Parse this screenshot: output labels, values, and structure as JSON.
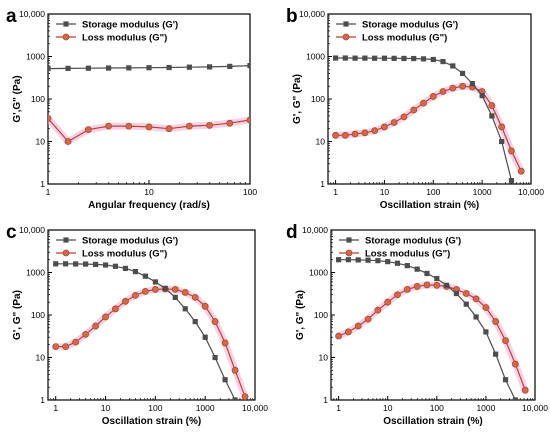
{
  "colors": {
    "storage": "#4d4d4d",
    "loss_line": "#b5452e",
    "loss_fill": "#cf6a4a",
    "loss_glow": "#f2b3d8"
  },
  "chart_data": [
    {
      "panel_label": "a",
      "type": "line",
      "xlabel": "Angular frequency (rad/s)",
      "ylabel": "G',G\" (Pa)",
      "xscale": "log",
      "yscale": "log",
      "xlim": [
        1,
        100
      ],
      "ylim": [
        1,
        10000
      ],
      "xticks": [
        "1",
        "10",
        "100"
      ],
      "yticks": [
        "1",
        "10",
        "100",
        "1000",
        "10,000"
      ],
      "legend_position": "top-left",
      "series": [
        {
          "name": "Storage modulus (G')",
          "marker": "square",
          "x": [
            1,
            1.58,
            2.51,
            3.98,
            6.31,
            10,
            15.8,
            25.1,
            39.8,
            63.1,
            100
          ],
          "y": [
            520,
            525,
            530,
            535,
            540,
            545,
            550,
            560,
            570,
            585,
            610
          ]
        },
        {
          "name": "Loss modulus (G\")",
          "marker": "circle",
          "x": [
            1,
            1.58,
            2.51,
            3.98,
            6.31,
            10,
            15.8,
            25.1,
            39.8,
            63.1,
            100
          ],
          "y": [
            35,
            10,
            19,
            23,
            23,
            22,
            20,
            23,
            24,
            27,
            32
          ]
        }
      ]
    },
    {
      "panel_label": "b",
      "type": "line",
      "xlabel": "Oscillation strain (%)",
      "ylabel": "G', G\" (Pa)",
      "xscale": "log",
      "yscale": "log",
      "xlim": [
        0.7,
        10000
      ],
      "ylim": [
        1,
        10000
      ],
      "xticks": [
        "1",
        "10",
        "100",
        "1000",
        "10,000"
      ],
      "yticks": [
        "1",
        "10",
        "100",
        "1000",
        "10,000"
      ],
      "legend_position": "top-left",
      "series": [
        {
          "name": "Storage modulus (G')",
          "marker": "square",
          "x": [
            1,
            1.58,
            2.51,
            3.98,
            6.31,
            10,
            15.8,
            25.1,
            39.8,
            63.1,
            100,
            158,
            251,
            398,
            631,
            1000,
            1580,
            2510,
            3980
          ],
          "y": [
            920,
            920,
            915,
            915,
            910,
            910,
            905,
            900,
            895,
            880,
            850,
            760,
            600,
            400,
            230,
            120,
            40,
            10,
            1.2
          ]
        },
        {
          "name": "Loss modulus (G\")",
          "marker": "circle",
          "x": [
            1,
            1.58,
            2.51,
            3.98,
            6.31,
            10,
            15.8,
            25.1,
            39.8,
            63.1,
            100,
            158,
            251,
            398,
            631,
            1000,
            1580,
            2510,
            3980,
            6310
          ],
          "y": [
            14,
            14,
            15,
            16,
            18,
            22,
            28,
            38,
            55,
            80,
            115,
            150,
            180,
            200,
            190,
            150,
            70,
            22,
            6,
            2
          ]
        }
      ]
    },
    {
      "panel_label": "c",
      "type": "line",
      "xlabel": "Oscillation strain (%)",
      "ylabel": "G', G\" (Pa)",
      "xscale": "log",
      "yscale": "log",
      "xlim": [
        0.7,
        10000
      ],
      "ylim": [
        1,
        10000
      ],
      "xticks": [
        "1",
        "10",
        "100",
        "1000",
        "10,000"
      ],
      "yticks": [
        "1",
        "10",
        "100",
        "1000",
        "10,000"
      ],
      "legend_position": "top-left",
      "series": [
        {
          "name": "Storage modulus (G')",
          "marker": "square",
          "x": [
            1,
            1.58,
            2.51,
            3.98,
            6.31,
            10,
            15.8,
            25.1,
            39.8,
            63.1,
            100,
            158,
            251,
            398,
            631,
            1000,
            1580,
            2510,
            3980
          ],
          "y": [
            1600,
            1600,
            1590,
            1580,
            1550,
            1500,
            1400,
            1250,
            1050,
            820,
            600,
            420,
            260,
            140,
            70,
            30,
            10,
            3,
            1
          ]
        },
        {
          "name": "Loss modulus (G\")",
          "marker": "circle",
          "x": [
            1,
            1.58,
            2.51,
            3.98,
            6.31,
            10,
            15.8,
            25.1,
            39.8,
            63.1,
            100,
            158,
            251,
            398,
            631,
            1000,
            1580,
            2510,
            3980,
            6310
          ],
          "y": [
            18,
            18,
            23,
            35,
            55,
            90,
            140,
            210,
            290,
            360,
            400,
            410,
            400,
            340,
            260,
            160,
            70,
            22,
            5,
            1.2
          ]
        }
      ]
    },
    {
      "panel_label": "d",
      "type": "line",
      "xlabel": "Oscillation strain (%)",
      "ylabel": "G', G\" (Pa)",
      "xscale": "log",
      "yscale": "log",
      "xlim": [
        0.7,
        10000
      ],
      "ylim": [
        1,
        10000
      ],
      "xticks": [
        "1",
        "10",
        "100",
        "1000",
        "10,000"
      ],
      "yticks": [
        "1",
        "10",
        "100",
        "1000",
        "10,000"
      ],
      "legend_position": "top-left",
      "series": [
        {
          "name": "Storage modulus (G')",
          "marker": "square",
          "x": [
            1,
            1.58,
            2.51,
            3.98,
            6.31,
            10,
            15.8,
            25.1,
            39.8,
            63.1,
            100,
            158,
            251,
            398,
            631,
            1000,
            1580,
            2510,
            3980
          ],
          "y": [
            2000,
            2000,
            1980,
            1950,
            1900,
            1800,
            1650,
            1450,
            1200,
            950,
            720,
            500,
            320,
            180,
            90,
            40,
            12,
            3,
            1
          ]
        },
        {
          "name": "Loss modulus (G\")",
          "marker": "circle",
          "x": [
            1,
            1.58,
            2.51,
            3.98,
            6.31,
            10,
            15.8,
            25.1,
            39.8,
            63.1,
            100,
            158,
            251,
            398,
            631,
            1000,
            1580,
            2510,
            3980,
            6310
          ],
          "y": [
            32,
            40,
            55,
            80,
            130,
            200,
            300,
            400,
            470,
            510,
            500,
            470,
            400,
            320,
            240,
            150,
            70,
            25,
            7,
            1.7
          ]
        }
      ]
    }
  ]
}
